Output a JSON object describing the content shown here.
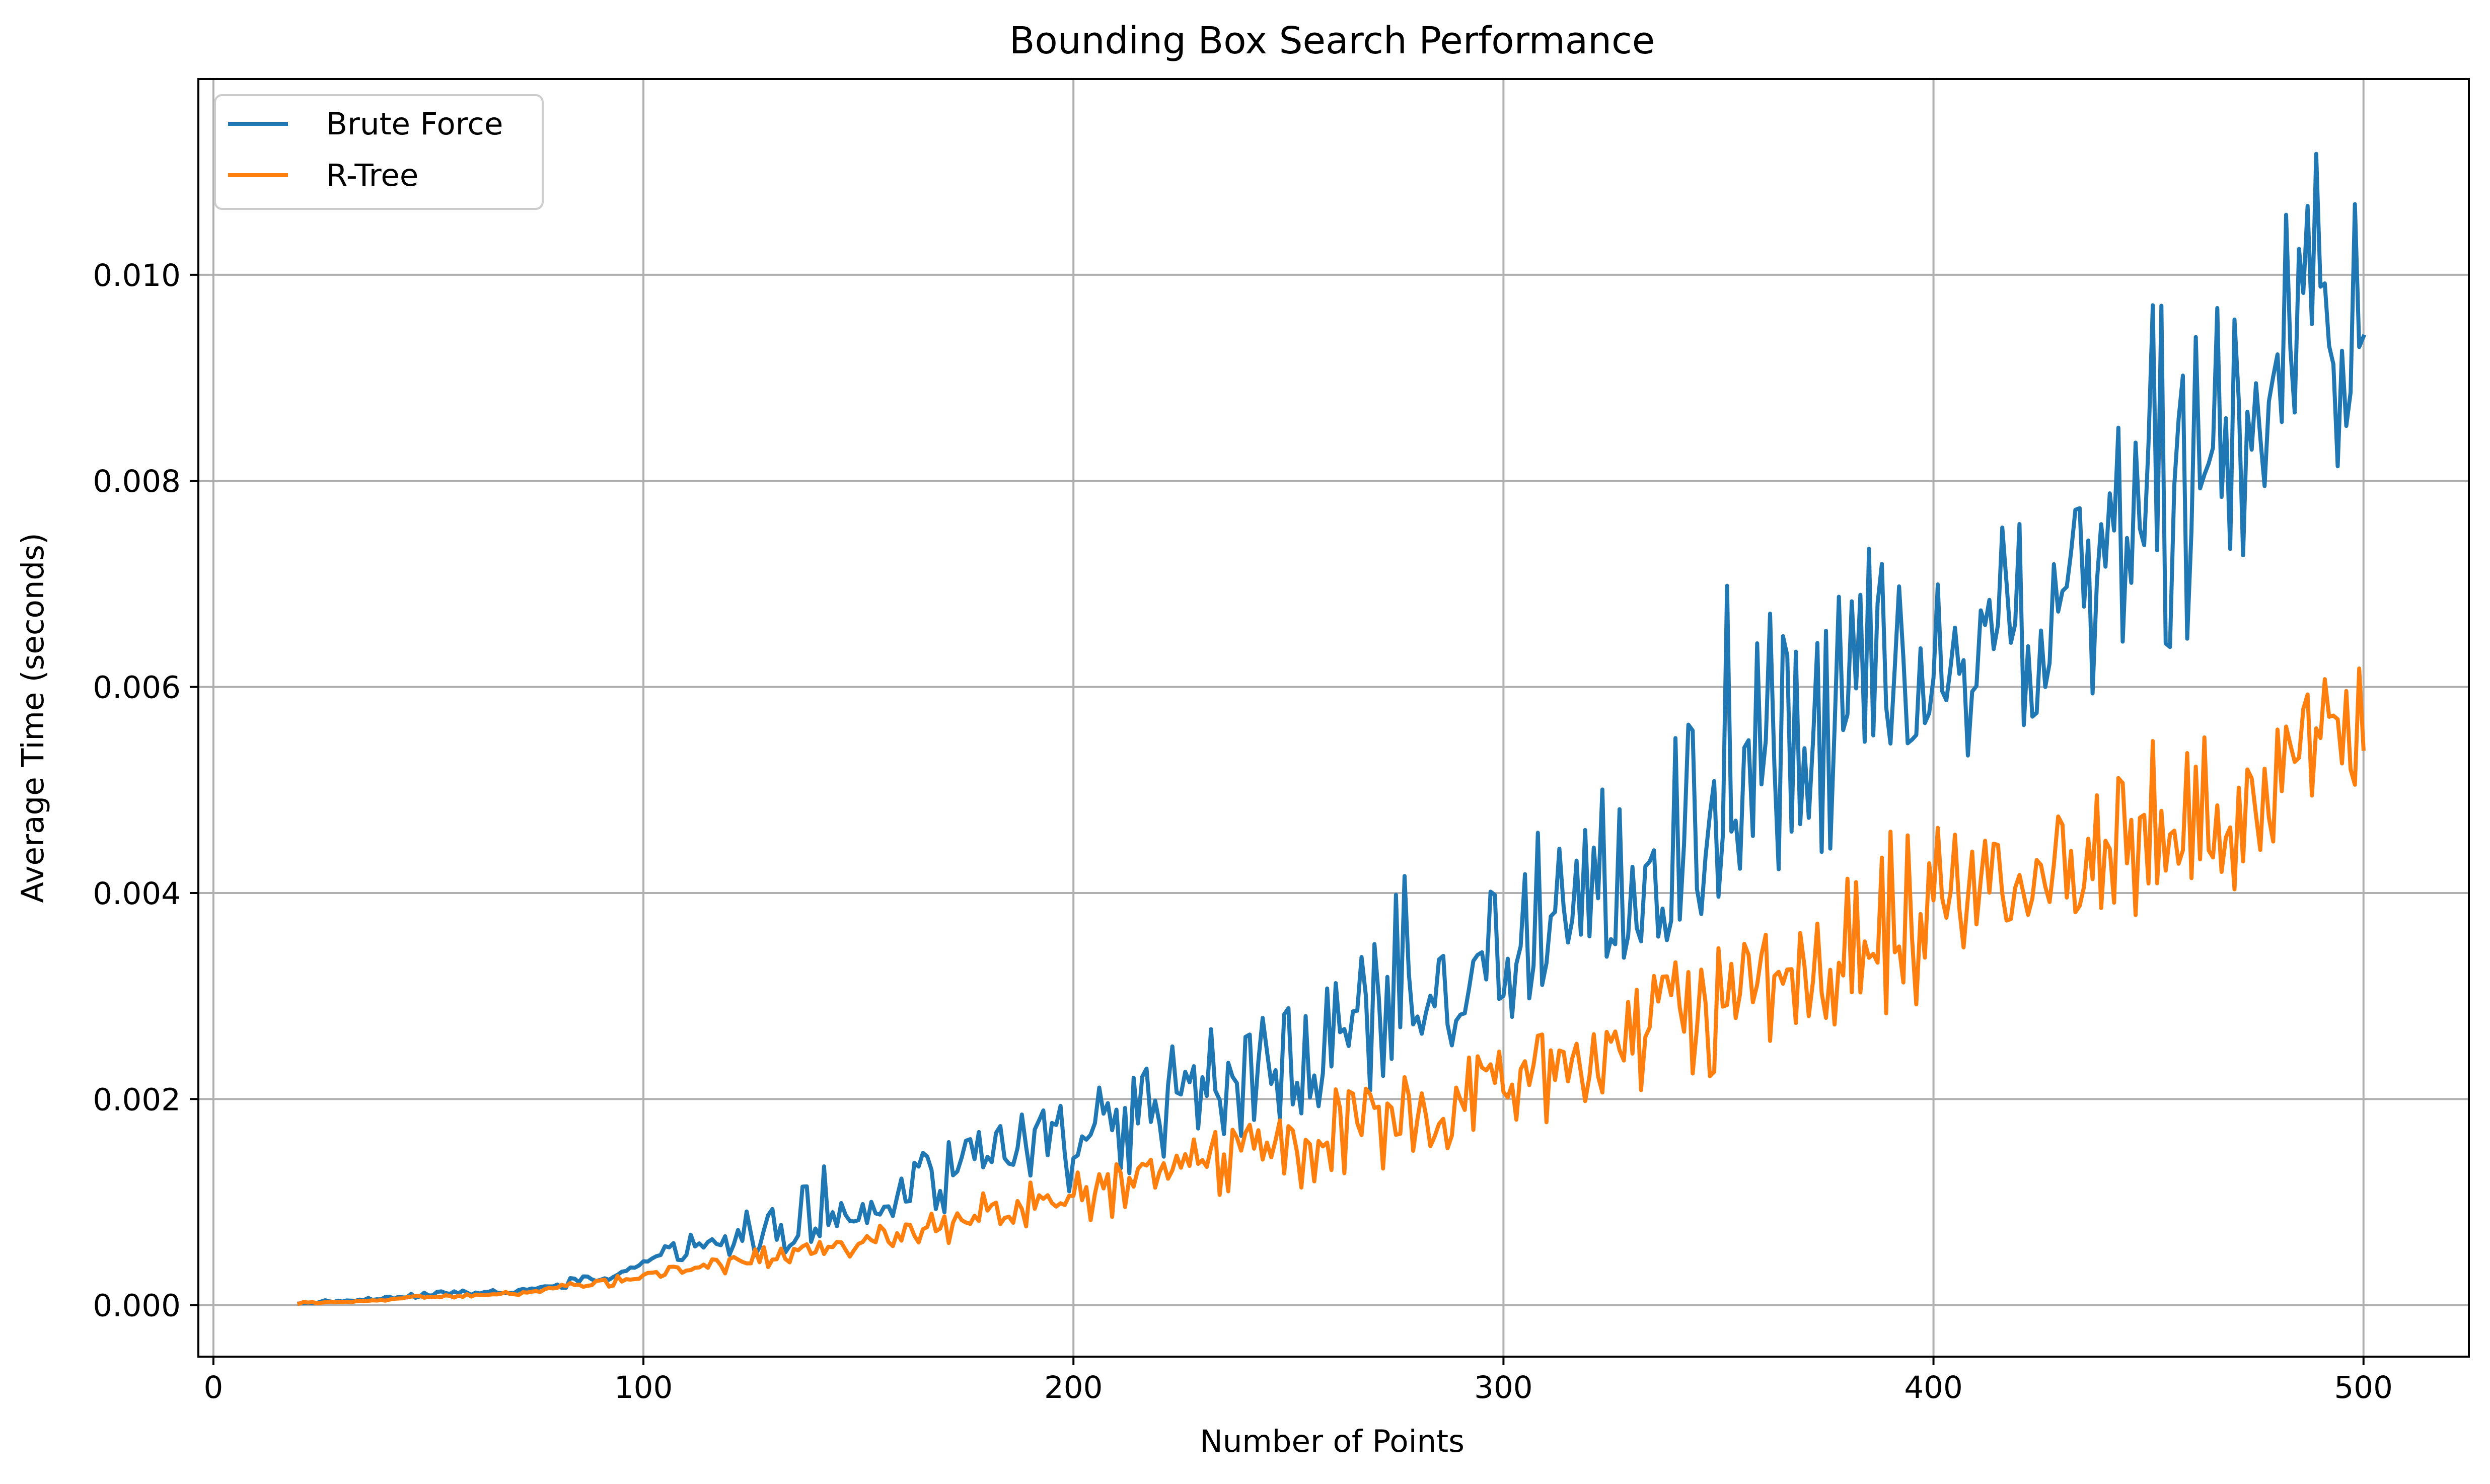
{
  "chart_data": {
    "type": "line",
    "title": "Bounding Box Search Performance",
    "xlabel": "Number of Points",
    "ylabel": "Average Time (seconds)",
    "xlim": [
      -3.5,
      524.5
    ],
    "ylim": [
      -0.0005,
      0.0119
    ],
    "xticks": [
      0,
      100,
      200,
      300,
      400,
      500
    ],
    "xtick_labels": [
      "0",
      "100",
      "200",
      "300",
      "400",
      "500"
    ],
    "yticks": [
      0.0,
      0.002,
      0.004,
      0.006,
      0.008,
      0.01
    ],
    "ytick_labels": [
      "0.000",
      "0.002",
      "0.004",
      "0.006",
      "0.008",
      "0.010"
    ],
    "grid": true,
    "legend_position": "upper-left",
    "series": [
      {
        "name": "Brute Force",
        "color": "#1f77b4",
        "x": [
          20,
          30,
          40,
          50,
          60,
          70,
          80,
          90,
          100,
          110,
          120,
          130,
          140,
          150,
          160,
          170,
          180,
          190,
          200,
          210,
          220,
          230,
          240,
          250,
          260,
          270,
          280,
          290,
          300,
          310,
          320,
          330,
          340,
          350,
          360,
          370,
          380,
          390,
          400,
          410,
          420,
          430,
          440,
          450,
          460,
          470,
          480,
          490,
          500
        ],
        "values": [
          2e-05,
          4e-05,
          6e-05,
          0.0001,
          0.00012,
          0.00013,
          0.0002,
          0.00025,
          0.0004,
          0.0005,
          0.00065,
          0.0007,
          0.0008,
          0.0009,
          0.0011,
          0.0012,
          0.0014,
          0.0016,
          0.0016,
          0.0018,
          0.0019,
          0.0021,
          0.0022,
          0.0023,
          0.0025,
          0.0027,
          0.003,
          0.0031,
          0.0032,
          0.0034,
          0.0036,
          0.0038,
          0.0042,
          0.0045,
          0.005,
          0.0052,
          0.0054,
          0.0058,
          0.006,
          0.0064,
          0.0068,
          0.007,
          0.0072,
          0.0078,
          0.008,
          0.0087,
          0.0092,
          0.0098,
          0.0094
        ],
        "min_values": [
          1e-05,
          3e-05,
          5e-05,
          8e-05,
          0.0001,
          0.00011,
          0.00016,
          0.0002,
          0.00034,
          0.00038,
          0.00045,
          0.00048,
          0.00055,
          0.00065,
          0.0008,
          0.0009,
          0.001,
          0.0011,
          0.0011,
          0.0012,
          0.0014,
          0.0015,
          0.0016,
          0.0017,
          0.0019,
          0.0021,
          0.0024,
          0.0025,
          0.0027,
          0.0028,
          0.003,
          0.0032,
          0.0036,
          0.0038,
          0.0041,
          0.0042,
          0.0043,
          0.0047,
          0.0049,
          0.0052,
          0.0056,
          0.0058,
          0.0059,
          0.0061,
          0.0065,
          0.007,
          0.0074,
          0.0078,
          0.0077
        ],
        "max_values": [
          4e-05,
          6e-05,
          8e-05,
          0.00013,
          0.00015,
          0.00016,
          0.00025,
          0.0003,
          0.00055,
          0.00066,
          0.001,
          0.00095,
          0.0014,
          0.00125,
          0.0014,
          0.0016,
          0.0018,
          0.0019,
          0.002,
          0.0022,
          0.0025,
          0.0027,
          0.0028,
          0.0029,
          0.0031,
          0.0038,
          0.0045,
          0.0041,
          0.0043,
          0.0047,
          0.0048,
          0.0058,
          0.0057,
          0.0071,
          0.0068,
          0.0066,
          0.0072,
          0.0075,
          0.0075,
          0.0078,
          0.0079,
          0.008,
          0.008,
          0.0103,
          0.0094,
          0.01,
          0.011,
          0.0114,
          0.0106
        ]
      },
      {
        "name": "R-Tree",
        "color": "#ff7f0e",
        "x": [
          20,
          30,
          40,
          50,
          60,
          70,
          80,
          90,
          100,
          110,
          120,
          130,
          140,
          150,
          160,
          170,
          180,
          190,
          200,
          210,
          220,
          230,
          240,
          250,
          260,
          270,
          280,
          290,
          300,
          310,
          320,
          330,
          340,
          350,
          360,
          370,
          380,
          390,
          400,
          410,
          420,
          430,
          440,
          450,
          460,
          470,
          480,
          490,
          500
        ],
        "values": [
          2e-05,
          3e-05,
          5e-05,
          8e-05,
          0.0001,
          0.00011,
          0.00017,
          0.0002,
          0.00028,
          0.00032,
          0.00042,
          0.00048,
          0.00055,
          0.0006,
          0.0007,
          0.0008,
          0.0009,
          0.001,
          0.0011,
          0.0012,
          0.0013,
          0.0014,
          0.0015,
          0.0016,
          0.0017,
          0.0018,
          0.0019,
          0.002,
          0.0022,
          0.0023,
          0.0024,
          0.0026,
          0.0028,
          0.0029,
          0.0031,
          0.0032,
          0.0033,
          0.0034,
          0.0036,
          0.0038,
          0.004,
          0.0041,
          0.0042,
          0.0044,
          0.0046,
          0.0048,
          0.0052,
          0.0058,
          0.0054
        ],
        "min_values": [
          1e-05,
          2e-05,
          4e-05,
          6e-05,
          8e-05,
          9e-05,
          0.00014,
          0.00016,
          0.00022,
          0.00025,
          0.0003,
          0.00035,
          0.0004,
          0.00045,
          0.0005,
          0.00058,
          0.00065,
          0.00072,
          0.0008,
          0.00085,
          0.0009,
          0.00095,
          0.001,
          0.0011,
          0.0012,
          0.0013,
          0.0014,
          0.0015,
          0.0016,
          0.0017,
          0.0018,
          0.002,
          0.0021,
          0.0022,
          0.0024,
          0.0025,
          0.0026,
          0.0027,
          0.0029,
          0.0031,
          0.0033,
          0.0034,
          0.0036,
          0.0037,
          0.0039,
          0.004,
          0.0043,
          0.0047,
          0.0043
        ],
        "max_values": [
          3e-05,
          4e-05,
          6e-05,
          0.0001,
          0.00012,
          0.00013,
          0.0002,
          0.00025,
          0.00036,
          0.0004,
          0.0005,
          0.0006,
          0.0007,
          0.00075,
          0.00085,
          0.001,
          0.0011,
          0.0012,
          0.0013,
          0.0014,
          0.0016,
          0.0017,
          0.0018,
          0.0019,
          0.0021,
          0.0022,
          0.0023,
          0.0024,
          0.0026,
          0.0027,
          0.0028,
          0.0031,
          0.0034,
          0.0035,
          0.0036,
          0.0038,
          0.0043,
          0.0046,
          0.0047,
          0.0046,
          0.0047,
          0.005,
          0.0055,
          0.0055,
          0.0055,
          0.0059,
          0.0063,
          0.0069,
          0.0062
        ]
      }
    ]
  }
}
